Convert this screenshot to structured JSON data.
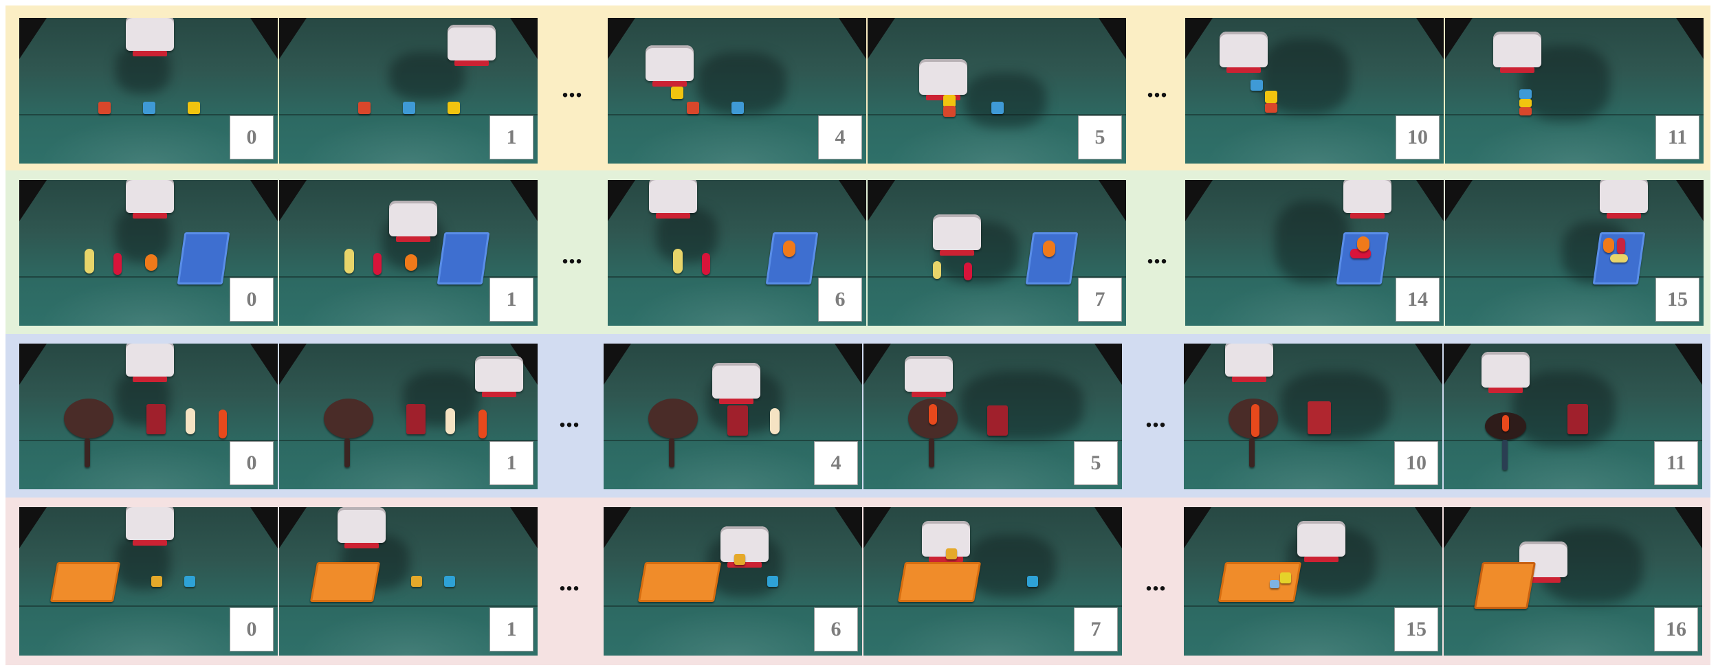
{
  "rows": [
    {
      "band_color": "#fbeec4",
      "ellipsis": [
        "...",
        "..."
      ],
      "frames": [
        {
          "label": "0"
        },
        {
          "label": "1"
        },
        {
          "label": "4"
        },
        {
          "label": "5"
        },
        {
          "label": "10"
        },
        {
          "label": "11"
        }
      ]
    },
    {
      "band_color": "#e3f1d9",
      "ellipsis": [
        "...",
        "..."
      ],
      "frames": [
        {
          "label": "0"
        },
        {
          "label": "1"
        },
        {
          "label": "6"
        },
        {
          "label": "7"
        },
        {
          "label": "14"
        },
        {
          "label": "15"
        }
      ]
    },
    {
      "band_color": "#d2dcf1",
      "ellipsis": [
        "...",
        "..."
      ],
      "frames": [
        {
          "label": "0"
        },
        {
          "label": "1"
        },
        {
          "label": "4"
        },
        {
          "label": "5"
        },
        {
          "label": "10"
        },
        {
          "label": "11"
        }
      ]
    },
    {
      "band_color": "#f5e2e2",
      "ellipsis": [
        "...",
        "..."
      ],
      "frames": [
        {
          "label": "0"
        },
        {
          "label": "1"
        },
        {
          "label": "6"
        },
        {
          "label": "7"
        },
        {
          "label": "15"
        },
        {
          "label": "16"
        }
      ]
    }
  ]
}
